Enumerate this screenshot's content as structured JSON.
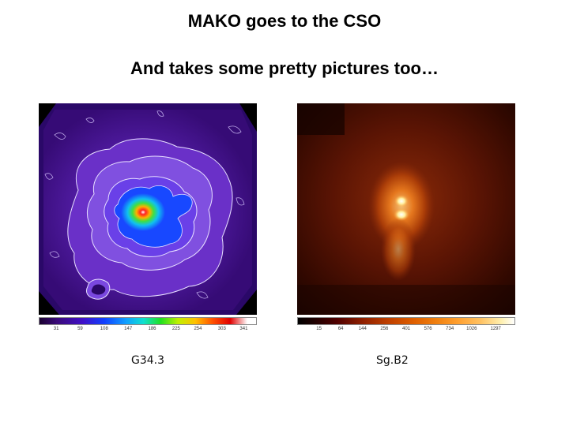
{
  "slide": {
    "title": "MAKO goes to the CSO",
    "subtitle": "And takes some pretty pictures too…"
  },
  "images": [
    {
      "caption": "G34.3",
      "colormap": "rainbow",
      "colorbar_ticks": [
        "31",
        "59",
        "108",
        "147",
        "186",
        "225",
        "254",
        "303",
        "341"
      ]
    },
    {
      "caption": "Sg.B2",
      "colormap": "heat",
      "colorbar_ticks": [
        "15",
        "64",
        "144",
        "256",
        "401",
        "576",
        "734",
        "1026",
        "1297"
      ]
    }
  ]
}
